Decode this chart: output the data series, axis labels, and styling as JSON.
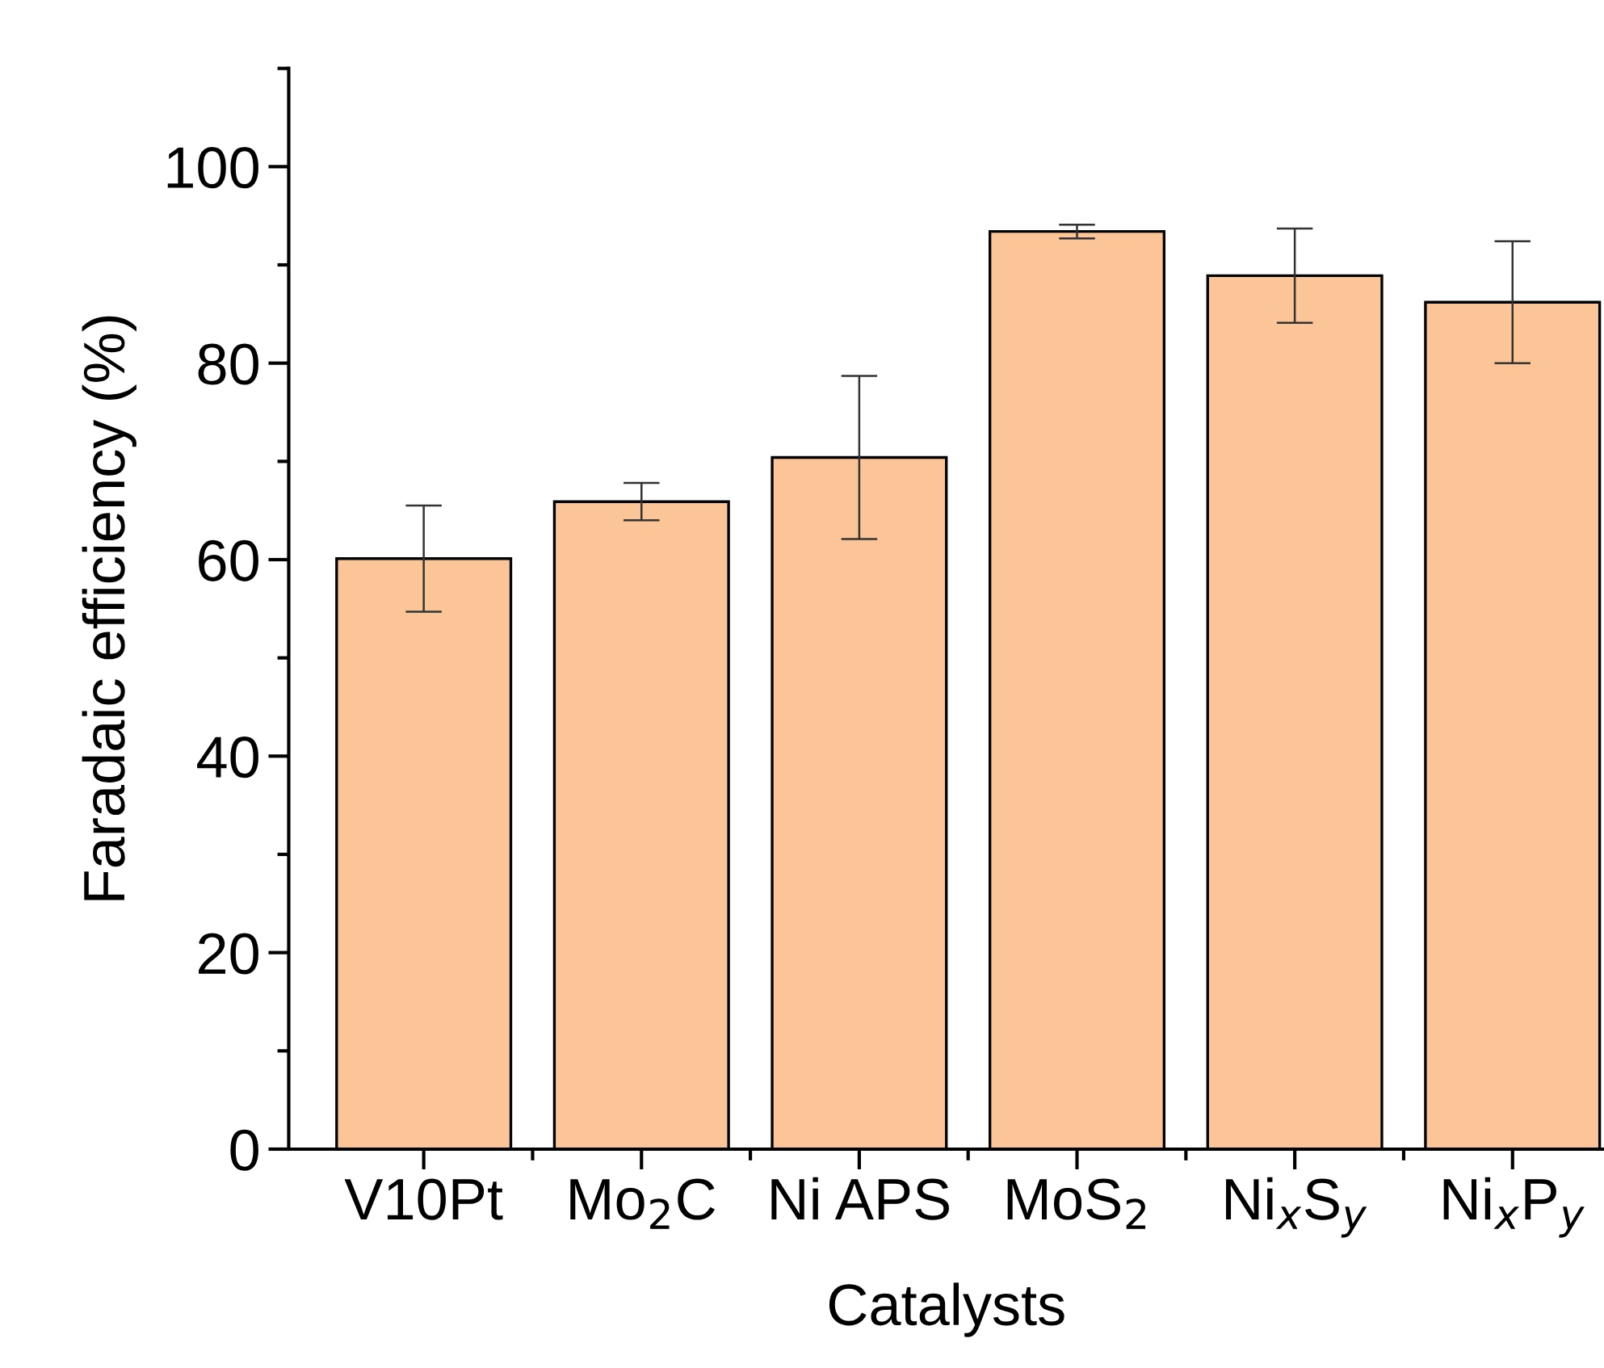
{
  "chart_data": {
    "type": "bar",
    "xlabel": "Catalysts",
    "ylabel": "Faradaic efficiency (%)",
    "categories": [
      "V10Pt",
      "Mo$_{2}$C",
      "Ni APS",
      "MoS$_{2}$",
      "Ni$_{x}$S$_{y}$",
      "Ni$_{x}$P$_{y}$"
    ],
    "values": [
      60.1,
      65.9,
      70.4,
      93.4,
      88.9,
      86.2
    ],
    "errors": [
      5.4,
      1.9,
      8.3,
      0.7,
      4.8,
      6.2
    ],
    "color": "#fcc597",
    "ylim": [
      0,
      110
    ],
    "yticks": [
      0,
      20,
      40,
      60,
      80,
      100
    ],
    "grid": false
  }
}
